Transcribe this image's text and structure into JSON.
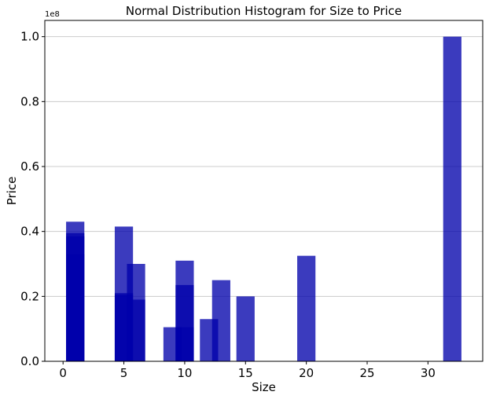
{
  "chart_data": {
    "type": "bar",
    "title": "Normal Distribution Histogram for Size to Price",
    "xlabel": "Size",
    "ylabel": "Price",
    "y_offset_label": "1e8",
    "xlim": [
      -1.5,
      34.5
    ],
    "ylim": [
      0,
      105000000
    ],
    "y_scale": 100000000,
    "grid": "horizontal",
    "bar_color": "#0000aa",
    "bar_opacity": 0.77,
    "bar_width": 1.5,
    "x_ticks": [
      0,
      5,
      10,
      15,
      20,
      25,
      30
    ],
    "y_ticks": [
      0,
      20000000,
      40000000,
      60000000,
      80000000,
      100000000
    ],
    "x_tick_labels": [
      "0",
      "5",
      "10",
      "15",
      "20",
      "25",
      "30"
    ],
    "y_tick_labels": [
      "0.0",
      "0.2",
      "0.4",
      "0.6",
      "0.8",
      "1.0"
    ],
    "bars": [
      {
        "x": 1,
        "value": 43000000
      },
      {
        "x": 1,
        "value": 39500000
      },
      {
        "x": 1,
        "value": 38500000
      },
      {
        "x": 1,
        "value": 33000000
      },
      {
        "x": 5,
        "value": 41500000
      },
      {
        "x": 5,
        "value": 21000000
      },
      {
        "x": 5,
        "value": 20500000
      },
      {
        "x": 6,
        "value": 30000000
      },
      {
        "x": 6,
        "value": 19000000
      },
      {
        "x": 9,
        "value": 10500000
      },
      {
        "x": 10,
        "value": 31000000
      },
      {
        "x": 10,
        "value": 23500000
      },
      {
        "x": 10,
        "value": 10500000
      },
      {
        "x": 12,
        "value": 13000000
      },
      {
        "x": 13,
        "value": 25000000
      },
      {
        "x": 15,
        "value": 20000000
      },
      {
        "x": 20,
        "value": 32500000
      },
      {
        "x": 32,
        "value": 100000000
      }
    ]
  }
}
